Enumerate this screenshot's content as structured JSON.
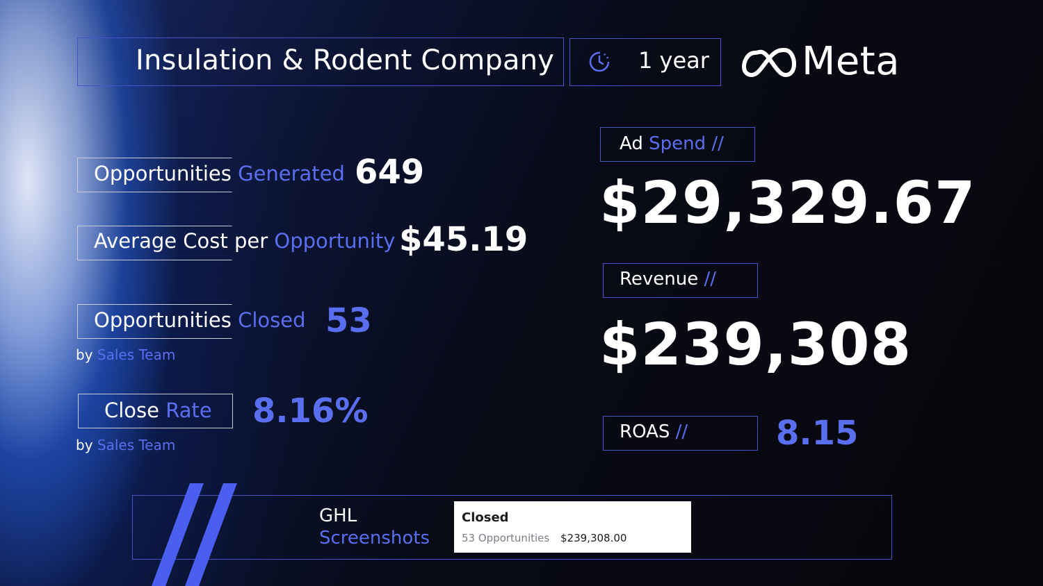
{
  "header": {
    "company": "Insulation & Rodent Company",
    "period": "1 year",
    "brand": "Meta",
    "icons": {
      "period": "clock-icon",
      "brand": "meta-infinity-logo"
    }
  },
  "metrics_left": {
    "opportunities_generated": {
      "label_a": "Opportunities",
      "label_b": "Generated",
      "value": "649"
    },
    "avg_cost": {
      "label_a": "Average Cost",
      "label_b": "per",
      "label_c": "Opportunity",
      "value": "$45.19"
    },
    "opportunities_closed": {
      "label_a": "Opportunities",
      "label_b": "Closed",
      "value": "53",
      "note_a": "by",
      "note_b": "Sales Team"
    },
    "close_rate": {
      "label_a": "Close",
      "label_b": "Rate",
      "value": "8.16%",
      "note_a": "by",
      "note_b": "Sales Team"
    }
  },
  "metrics_right": {
    "ad_spend": {
      "label_a": "Ad",
      "label_b": "Spend",
      "slash": "//",
      "value": "$29,329.67"
    },
    "revenue": {
      "label": "Revenue",
      "slash": "//",
      "value": "$239,308"
    },
    "roas": {
      "label": "ROAS",
      "slash": "//",
      "value": "8.15"
    }
  },
  "footer": {
    "ghl_a": "GHL",
    "ghl_b": "Screenshots",
    "card": {
      "title": "Closed",
      "count": "53 Opportunities",
      "amount": "$239,308.00"
    }
  },
  "colors": {
    "accent": "#5a6ff0",
    "border": "#4a52c8",
    "text": "#ffffff",
    "background": "#07070b"
  }
}
